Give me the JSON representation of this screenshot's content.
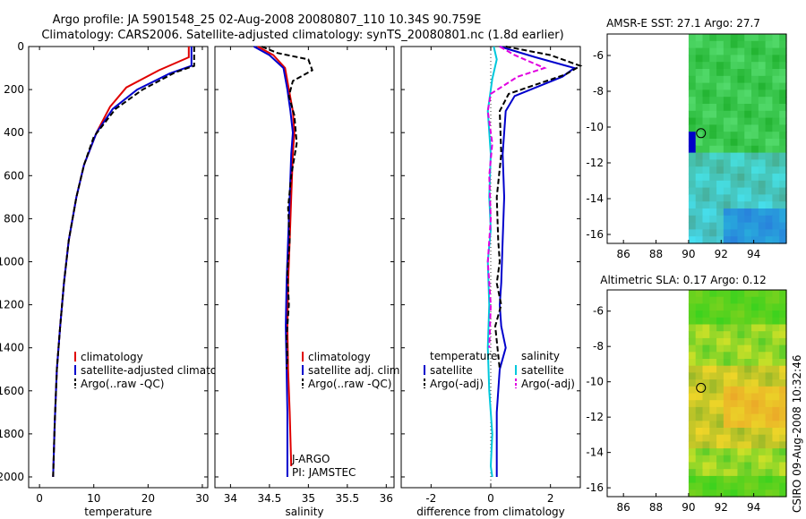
{
  "header": {
    "line1": "Argo profile: JA 5901548_25 02-Aug-2008 20080807_110 10.34S 90.759E",
    "line2": "Climatology: CARS2006. Satellite-adjusted climatology: synTS_20080801.nc (1.8d earlier)"
  },
  "side_label": "CSIRO 09-Aug-2008 10:32:46",
  "colors": {
    "climatology": "#e00000",
    "satellite": "#0000cc",
    "argo": "#000000",
    "salinity_sat": "#00c8dc",
    "salinity_argo": "#e000e0"
  },
  "chart_data": [
    {
      "id": "temperature",
      "type": "line",
      "xlabel": "temperature",
      "ylabel": "",
      "xlim": [
        -2,
        31
      ],
      "ylim": [
        0,
        2050
      ],
      "y_inverted": true,
      "xticks": [
        0,
        10,
        20,
        30
      ],
      "yticks": [
        0,
        200,
        400,
        600,
        800,
        1000,
        1200,
        1400,
        1600,
        1800,
        2000
      ],
      "legend": [
        "climatology",
        "satellite-adjusted climatology",
        "Argo(..raw -QC)"
      ],
      "legend_position": "lower-right",
      "series": [
        {
          "name": "climatology",
          "color": "#e00000",
          "dash": "",
          "x": [
            27.5,
            27.5,
            22,
            16,
            13,
            10.5,
            8.2,
            6.8,
            5.4,
            4.5,
            3.8,
            3.2,
            2.8,
            2.5
          ],
          "y": [
            0,
            50,
            110,
            190,
            280,
            400,
            550,
            700,
            900,
            1100,
            1300,
            1500,
            1750,
            2000
          ]
        },
        {
          "name": "satellite-adjusted climatology",
          "color": "#0000cc",
          "dash": "",
          "x": [
            28,
            28,
            24,
            18,
            13.5,
            10.5,
            8.2,
            6.8,
            5.4,
            4.5,
            3.8,
            3.2,
            2.8,
            2.5
          ],
          "y": [
            0,
            90,
            125,
            200,
            290,
            400,
            550,
            700,
            900,
            1100,
            1300,
            1500,
            1750,
            2000
          ]
        },
        {
          "name": "Argo(..raw -QC)",
          "color": "#000000",
          "dash": "6,3",
          "x": [
            28.5,
            28.5,
            25,
            19,
            14,
            10,
            8.2,
            6.8,
            5.4,
            4.5,
            3.8,
            3.2,
            2.8,
            2.5
          ],
          "y": [
            0,
            90,
            120,
            200,
            290,
            420,
            550,
            700,
            900,
            1100,
            1300,
            1500,
            1750,
            2000
          ]
        }
      ]
    },
    {
      "id": "salinity",
      "type": "line",
      "xlabel": "salinity",
      "ylabel": "",
      "xlim": [
        33.8,
        36.1
      ],
      "ylim": [
        0,
        2050
      ],
      "y_inverted": true,
      "xticks": [
        34,
        34.5,
        35,
        35.5,
        36
      ],
      "xtick_labels": [
        "34",
        "34.5",
        "35",
        "35.5",
        "36"
      ],
      "legend": [
        "climatology",
        "satellite adj. clim.",
        "Argo(..raw -QC)"
      ],
      "legend_position": "lower-right",
      "annotations": [
        "J-ARGO",
        "PI: JAMSTEC"
      ],
      "series": [
        {
          "name": "climatology",
          "color": "#e00000",
          "dash": "",
          "x": [
            34.35,
            34.55,
            34.7,
            34.75,
            34.8,
            34.82,
            34.8,
            34.78,
            34.76,
            34.74,
            34.73,
            34.74,
            34.76,
            34.78
          ],
          "y": [
            0,
            40,
            100,
            200,
            300,
            400,
            500,
            700,
            900,
            1100,
            1300,
            1500,
            1700,
            1950
          ]
        },
        {
          "name": "satellite adj. clim.",
          "color": "#0000cc",
          "dash": "",
          "x": [
            34.3,
            34.5,
            34.68,
            34.73,
            34.77,
            34.8,
            34.78,
            34.76,
            34.74,
            34.72,
            34.71,
            34.72,
            34.73,
            34.73
          ],
          "y": [
            0,
            40,
            100,
            200,
            300,
            400,
            500,
            700,
            900,
            1100,
            1300,
            1500,
            1700,
            2000
          ]
        },
        {
          "name": "Argo(..raw -QC)",
          "color": "#000000",
          "dash": "6,3",
          "x": [
            34.4,
            34.6,
            35.0,
            35.05,
            34.8,
            34.75,
            34.82,
            34.85,
            34.78,
            34.74,
            34.76,
            34.73,
            34.75,
            34.72,
            34.73,
            34.72
          ],
          "y": [
            0,
            30,
            60,
            110,
            160,
            230,
            320,
            450,
            600,
            750,
            900,
            1050,
            1200,
            1350,
            1450,
            1500
          ]
        }
      ]
    },
    {
      "id": "difference",
      "type": "line",
      "xlabel": "difference from climatology",
      "ylabel": "",
      "xlim": [
        -3,
        3
      ],
      "ylim": [
        0,
        2050
      ],
      "y_inverted": true,
      "xticks": [
        -2,
        0,
        2
      ],
      "legend_groups": [
        {
          "title": "temperature",
          "items": [
            "satellite",
            "Argo(-adj)"
          ]
        },
        {
          "title": "salinity",
          "items": [
            "satellite",
            "Argo(-adj)"
          ]
        }
      ],
      "legend_position": "lower-center",
      "series": [
        {
          "name": "temperature satellite",
          "color": "#0000cc",
          "dash": "",
          "x": [
            0.3,
            1.5,
            2.8,
            2.4,
            0.8,
            0.5,
            0.4,
            0.45,
            0.4,
            0.35,
            0.3,
            0.35,
            0.5,
            0.3,
            0.2,
            0.2
          ],
          "y": [
            0,
            50,
            100,
            140,
            230,
            300,
            500,
            700,
            900,
            1100,
            1200,
            1300,
            1400,
            1500,
            1700,
            2000
          ]
        },
        {
          "name": "temperature Argo(-adj)",
          "color": "#000000",
          "dash": "6,3",
          "x": [
            0.5,
            2.0,
            3.0,
            2.5,
            0.6,
            0.3,
            0.35,
            0.2,
            0.25,
            0.3,
            0.2,
            0.35,
            0.15,
            0.3
          ],
          "y": [
            0,
            40,
            90,
            130,
            220,
            300,
            500,
            700,
            900,
            1000,
            1100,
            1200,
            1300,
            1500
          ]
        },
        {
          "name": "salinity satellite",
          "color": "#00c8dc",
          "dash": "",
          "x": [
            0.1,
            0.2,
            0.05,
            -0.1,
            0.0,
            -0.05,
            0.0,
            -0.1,
            -0.05,
            -0.1,
            -0.05,
            0.05,
            0.0,
            0.05
          ],
          "y": [
            0,
            60,
            150,
            300,
            500,
            700,
            850,
            1000,
            1200,
            1400,
            1600,
            1800,
            1950,
            2000
          ]
        },
        {
          "name": "salinity Argo(-adj)",
          "color": "#e000e0",
          "dash": "6,3",
          "x": [
            0.3,
            0.8,
            1.8,
            0.9,
            0.0,
            -0.1,
            0.05,
            -0.05,
            0.0,
            -0.1,
            0.0,
            -0.05
          ],
          "y": [
            0,
            40,
            100,
            140,
            220,
            300,
            450,
            600,
            800,
            1000,
            1200,
            1400
          ]
        }
      ]
    },
    {
      "id": "sst_map",
      "type": "heatmap",
      "title": "AMSR-E SST: 27.1 Argo: 27.7",
      "xlim": [
        85,
        96
      ],
      "ylim": [
        -16.5,
        -4.8
      ],
      "xticks": [
        86,
        88,
        90,
        92,
        94
      ],
      "yticks": [
        -6,
        -8,
        -10,
        -12,
        -14,
        -16
      ],
      "data_x_range": [
        90,
        96
      ],
      "marker": {
        "lon": 90.76,
        "lat": -10.34
      }
    },
    {
      "id": "sla_map",
      "type": "heatmap",
      "title": "Altimetric SLA: 0.17 Argo: 0.12",
      "xlim": [
        85,
        96
      ],
      "ylim": [
        -16.5,
        -4.8
      ],
      "xticks": [
        86,
        88,
        90,
        92,
        94
      ],
      "yticks": [
        -6,
        -8,
        -10,
        -12,
        -14,
        -16
      ],
      "data_x_range": [
        90,
        96
      ],
      "marker": {
        "lon": 90.76,
        "lat": -10.34
      }
    }
  ]
}
